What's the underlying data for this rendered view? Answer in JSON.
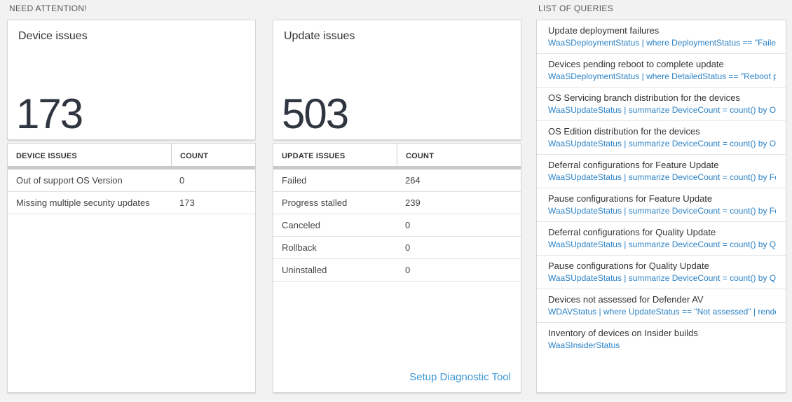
{
  "sections": {
    "need_attention": "NEED ATTENTION!",
    "list_of_queries": "LIST OF QUERIES"
  },
  "device_card": {
    "title": "Device issues",
    "count": "173",
    "table": {
      "headers": [
        "DEVICE ISSUES",
        "COUNT"
      ],
      "rows": [
        {
          "label": "Out of support OS Version",
          "count": "0"
        },
        {
          "label": "Missing multiple security updates",
          "count": "173"
        }
      ]
    }
  },
  "update_card": {
    "title": "Update issues",
    "count": "503",
    "table": {
      "headers": [
        "UPDATE ISSUES",
        "COUNT"
      ],
      "rows": [
        {
          "label": "Failed",
          "count": "264"
        },
        {
          "label": "Progress stalled",
          "count": "239"
        },
        {
          "label": "Canceled",
          "count": "0"
        },
        {
          "label": "Rollback",
          "count": "0"
        },
        {
          "label": "Uninstalled",
          "count": "0"
        }
      ]
    },
    "link": "Setup Diagnostic Tool"
  },
  "queries": {
    "items": [
      {
        "title": "Update deployment failures",
        "query": "WaaSDeploymentStatus | where DeploymentStatus == \"Failed\" |..."
      },
      {
        "title": "Devices pending reboot to complete update",
        "query": "WaaSDeploymentStatus | where DetailedStatus == \"Reboot pend..."
      },
      {
        "title": "OS Servicing branch distribution for the devices",
        "query": "WaaSUpdateStatus | summarize DeviceCount = count() by OSSer..."
      },
      {
        "title": "OS Edition distribution for the devices",
        "query": "WaaSUpdateStatus | summarize DeviceCount = count() by OSEdit..."
      },
      {
        "title": "Deferral configurations for Feature Update",
        "query": "WaaSUpdateStatus | summarize DeviceCount = count() by Featur..."
      },
      {
        "title": "Pause configurations for Feature Update",
        "query": "WaaSUpdateStatus | summarize DeviceCount = count() by Featur..."
      },
      {
        "title": "Deferral configurations for Quality Update",
        "query": "WaaSUpdateStatus | summarize DeviceCount = count() by Qualit..."
      },
      {
        "title": "Pause configurations for Quality Update",
        "query": "WaaSUpdateStatus | summarize DeviceCount = count() by Qualit..."
      },
      {
        "title": "Devices not assessed for Defender AV",
        "query": "WDAVStatus | where UpdateStatus == \"Not assessed\" | render ta..."
      },
      {
        "title": "Inventory of devices on Insider builds",
        "query": "WaaSInsiderStatus"
      }
    ]
  },
  "colors": {
    "page_background": "#f2f2f2",
    "panel_background": "#ffffff",
    "panel_border": "#d4d4d4",
    "query_blue": "#2b82c6",
    "link_blue": "#3a97d4",
    "big_number": "#2f3640",
    "table_header_bar": "#c9c9c9"
  }
}
